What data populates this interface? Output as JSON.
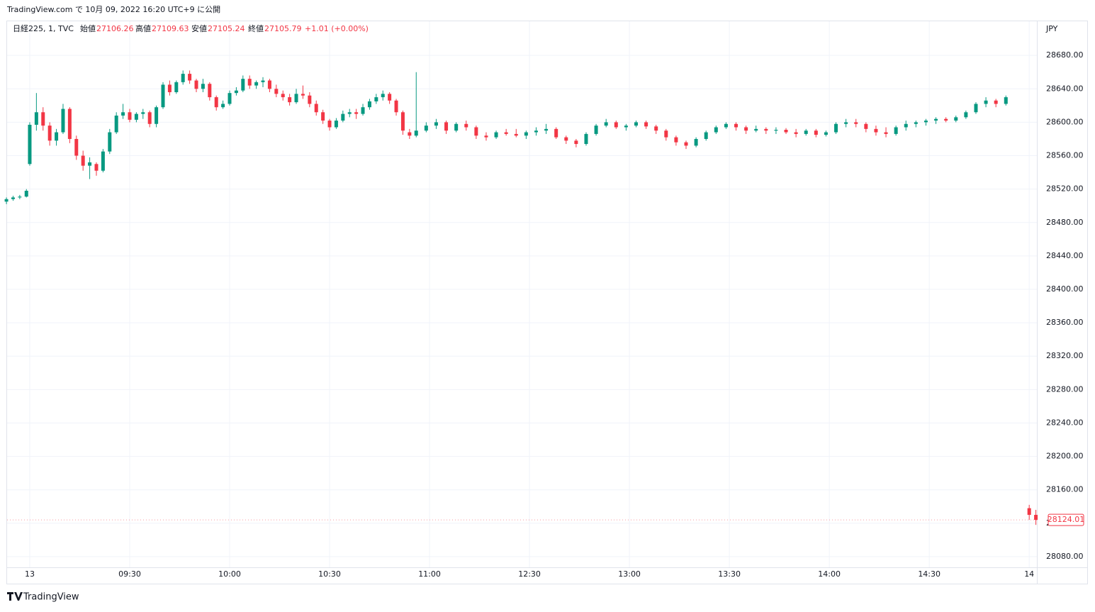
{
  "header": {
    "published": "TradingView.com で 10月 09, 2022 16:20 UTC+9 に公開"
  },
  "legend": {
    "symbol": "日経225, 1, TVC",
    "open_label": "始値",
    "open": "27106.26",
    "high_label": "高値",
    "high": "27109.63",
    "low_label": "安値",
    "low": "27105.24",
    "close_label": "終値",
    "close": "27105.79",
    "change": "+1.01 (+0.00%)"
  },
  "footer": {
    "logo": "TradingView"
  },
  "chart_data": {
    "type": "candlestick",
    "currency": "JPY",
    "up_color": "#089981",
    "down_color": "#f23645",
    "grid": true,
    "current_price": 28124.01,
    "xlim": [
      -6.8,
      302.3
    ],
    "ylim": [
      28067.2,
      28720.9
    ],
    "xticks": [
      {
        "value": 0,
        "label": "13"
      },
      {
        "value": 30,
        "label": "09:30"
      },
      {
        "value": 60,
        "label": "10:00"
      },
      {
        "value": 90,
        "label": "10:30"
      },
      {
        "value": 120,
        "label": "11:00"
      },
      {
        "value": 150,
        "label": "12:30"
      },
      {
        "value": 180,
        "label": "13:00"
      },
      {
        "value": 210,
        "label": "13:30"
      },
      {
        "value": 240,
        "label": "14:00"
      },
      {
        "value": 270,
        "label": "14:30"
      },
      {
        "value": 300,
        "label": "14"
      }
    ],
    "yticks": [
      {
        "value": 28080,
        "label": "28080.00"
      },
      {
        "value": 28120,
        "label": "28120.00"
      },
      {
        "value": 28160,
        "label": "28160.00"
      },
      {
        "value": 28200,
        "label": "28200.00"
      },
      {
        "value": 28240,
        "label": "28240.00"
      },
      {
        "value": 28280,
        "label": "28280.00"
      },
      {
        "value": 28320,
        "label": "28320.00"
      },
      {
        "value": 28360,
        "label": "28360.00"
      },
      {
        "value": 28400,
        "label": "28400.00"
      },
      {
        "value": 28440,
        "label": "28440.00"
      },
      {
        "value": 28480,
        "label": "28480.00"
      },
      {
        "value": 28520,
        "label": "28520.00"
      },
      {
        "value": 28560,
        "label": "28560.00"
      },
      {
        "value": 28600,
        "label": "28600.00"
      },
      {
        "value": 28640,
        "label": "28640.00"
      },
      {
        "value": 28680,
        "label": "28680.00"
      }
    ],
    "x": [
      -7,
      -5,
      -3,
      -1,
      0,
      2,
      4,
      6,
      8,
      10,
      12,
      14,
      16,
      18,
      20,
      22,
      24,
      26,
      28,
      30,
      32,
      34,
      36,
      38,
      40,
      42,
      44,
      46,
      48,
      50,
      52,
      54,
      56,
      58,
      60,
      62,
      64,
      66,
      68,
      70,
      72,
      74,
      76,
      78,
      80,
      82,
      84,
      86,
      88,
      90,
      92,
      94,
      96,
      98,
      100,
      102,
      104,
      106,
      108,
      110,
      112,
      114,
      116,
      119,
      122,
      125,
      128,
      131,
      134,
      137,
      140,
      143,
      146,
      149,
      152,
      155,
      158,
      161,
      164,
      167,
      170,
      173,
      176,
      179,
      182,
      185,
      188,
      191,
      194,
      197,
      200,
      203,
      206,
      209,
      212,
      215,
      218,
      221,
      224,
      227,
      230,
      233,
      236,
      239,
      242,
      245,
      248,
      251,
      254,
      257,
      260,
      263,
      266,
      269,
      272,
      275,
      278,
      281,
      284,
      287,
      290,
      293,
      300,
      302
    ],
    "ohlc": [
      [
        28505,
        28510,
        28502,
        28508
      ],
      [
        28508,
        28512,
        28506,
        28510
      ],
      [
        28510,
        28513,
        28508,
        28511
      ],
      [
        28511,
        28520,
        28510,
        28518
      ],
      [
        28550,
        28600,
        28548,
        28597
      ],
      [
        28597,
        28635,
        28590,
        28612
      ],
      [
        28612,
        28618,
        28590,
        28596
      ],
      [
        28596,
        28600,
        28572,
        28578
      ],
      [
        28578,
        28592,
        28572,
        28588
      ],
      [
        28588,
        28622,
        28586,
        28616
      ],
      [
        28616,
        28618,
        28575,
        28580
      ],
      [
        28580,
        28584,
        28555,
        28560
      ],
      [
        28560,
        28566,
        28542,
        28548
      ],
      [
        28548,
        28558,
        28532,
        28552
      ],
      [
        28550,
        28552,
        28536,
        28542
      ],
      [
        28542,
        28568,
        28540,
        28565
      ],
      [
        28565,
        28592,
        28562,
        28588
      ],
      [
        28588,
        28612,
        28586,
        28608
      ],
      [
        28608,
        28622,
        28604,
        28612
      ],
      [
        28612,
        28616,
        28600,
        28603
      ],
      [
        28603,
        28612,
        28600,
        28610
      ],
      [
        28610,
        28616,
        28604,
        28612
      ],
      [
        28612,
        28614,
        28594,
        28598
      ],
      [
        28598,
        28620,
        28594,
        28618
      ],
      [
        28618,
        28648,
        28616,
        28645
      ],
      [
        28645,
        28650,
        28632,
        28636
      ],
      [
        28636,
        28650,
        28634,
        28648
      ],
      [
        28648,
        28662,
        28645,
        28658
      ],
      [
        28658,
        28662,
        28646,
        28650
      ],
      [
        28650,
        28652,
        28636,
        28640
      ],
      [
        28640,
        28652,
        28636,
        28646
      ],
      [
        28646,
        28648,
        28626,
        28630
      ],
      [
        28630,
        28632,
        28614,
        28618
      ],
      [
        28618,
        28626,
        28616,
        28622
      ],
      [
        28622,
        28638,
        28620,
        28635
      ],
      [
        28635,
        28642,
        28632,
        28638
      ],
      [
        28638,
        28656,
        28636,
        28652
      ],
      [
        28652,
        28656,
        28640,
        28644
      ],
      [
        28644,
        28650,
        28640,
        28648
      ],
      [
        28648,
        28654,
        28642,
        28650
      ],
      [
        28650,
        28652,
        28636,
        28640
      ],
      [
        28640,
        28645,
        28630,
        28634
      ],
      [
        28634,
        28638,
        28626,
        28630
      ],
      [
        28630,
        28634,
        28620,
        28624
      ],
      [
        28624,
        28640,
        28622,
        28634
      ],
      [
        28634,
        28644,
        28628,
        28632
      ],
      [
        28632,
        28636,
        28618,
        28622
      ],
      [
        28622,
        28626,
        28608,
        28612
      ],
      [
        28612,
        28615,
        28598,
        28602
      ],
      [
        28602,
        28604,
        28590,
        28594
      ],
      [
        28594,
        28605,
        28592,
        28602
      ],
      [
        28602,
        28614,
        28600,
        28610
      ],
      [
        28610,
        28616,
        28606,
        28612
      ],
      [
        28612,
        28616,
        28604,
        28610
      ],
      [
        28610,
        28622,
        28608,
        28618
      ],
      [
        28618,
        28628,
        28615,
        28625
      ],
      [
        28625,
        28634,
        28622,
        28630
      ],
      [
        28630,
        28638,
        28626,
        28634
      ],
      [
        28634,
        28636,
        28622,
        28626
      ],
      [
        28626,
        28628,
        28608,
        28612
      ],
      [
        28612,
        28614,
        28585,
        28590
      ],
      [
        28588,
        28592,
        28580,
        28584
      ],
      [
        28584,
        28660,
        28582,
        28590
      ],
      [
        28590,
        28600,
        28588,
        28596
      ],
      [
        28596,
        28604,
        28592,
        28600
      ],
      [
        28600,
        28602,
        28586,
        28590
      ],
      [
        28590,
        28600,
        28588,
        28598
      ],
      [
        28598,
        28602,
        28590,
        28594
      ],
      [
        28594,
        28596,
        28580,
        28584
      ],
      [
        28584,
        28588,
        28578,
        28582
      ],
      [
        28582,
        28590,
        28580,
        28588
      ],
      [
        28588,
        28592,
        28584,
        28586
      ],
      [
        28586,
        28592,
        28582,
        28584
      ],
      [
        28584,
        28590,
        28580,
        28588
      ],
      [
        28588,
        28594,
        28584,
        28590
      ],
      [
        28590,
        28598,
        28586,
        28592
      ],
      [
        28592,
        28594,
        28580,
        28582
      ],
      [
        28582,
        28584,
        28574,
        28578
      ],
      [
        28578,
        28580,
        28570,
        28574
      ],
      [
        28574,
        28588,
        28572,
        28586
      ],
      [
        28586,
        28598,
        28584,
        28596
      ],
      [
        28596,
        28604,
        28594,
        28600
      ],
      [
        28600,
        28602,
        28592,
        28594
      ],
      [
        28594,
        28598,
        28590,
        28596
      ],
      [
        28596,
        28602,
        28594,
        28600
      ],
      [
        28600,
        28602,
        28592,
        28595
      ],
      [
        28595,
        28597,
        28586,
        28590
      ],
      [
        28590,
        28592,
        28578,
        28582
      ],
      [
        28582,
        28584,
        28572,
        28576
      ],
      [
        28576,
        28578,
        28568,
        28572
      ],
      [
        28572,
        28582,
        28570,
        28580
      ],
      [
        28580,
        28590,
        28578,
        28588
      ],
      [
        28588,
        28596,
        28586,
        28594
      ],
      [
        28594,
        28600,
        28592,
        28598
      ],
      [
        28598,
        28600,
        28590,
        28594
      ],
      [
        28594,
        28596,
        28586,
        28590
      ],
      [
        28590,
        28596,
        28588,
        28592
      ],
      [
        28592,
        28594,
        28586,
        28590
      ],
      [
        28590,
        28594,
        28586,
        28591
      ],
      [
        28591,
        28593,
        28586,
        28588
      ],
      [
        28588,
        28592,
        28582,
        28586
      ],
      [
        28586,
        28592,
        28584,
        28590
      ],
      [
        28590,
        28592,
        28582,
        28585
      ],
      [
        28585,
        28590,
        28583,
        28588
      ],
      [
        28588,
        28600,
        28586,
        28598
      ],
      [
        28598,
        28604,
        28594,
        28600
      ],
      [
        28600,
        28604,
        28594,
        28598
      ],
      [
        28598,
        28600,
        28588,
        28592
      ],
      [
        28592,
        28596,
        28584,
        28588
      ],
      [
        28588,
        28594,
        28582,
        28586
      ],
      [
        28586,
        28596,
        28584,
        28594
      ],
      [
        28594,
        28602,
        28590,
        28598
      ],
      [
        28598,
        28602,
        28594,
        28600
      ],
      [
        28600,
        28604,
        28596,
        28602
      ],
      [
        28602,
        28606,
        28598,
        28604
      ],
      [
        28604,
        28606,
        28600,
        28602
      ],
      [
        28602,
        28608,
        28600,
        28606
      ],
      [
        28606,
        28614,
        28604,
        28612
      ],
      [
        28612,
        28624,
        28610,
        28622
      ],
      [
        28622,
        28630,
        28618,
        28626
      ],
      [
        28626,
        28628,
        28618,
        28622
      ],
      [
        28622,
        28632,
        28620,
        28630
      ],
      [
        28138,
        28142,
        28124,
        28130
      ],
      [
        28130,
        28136,
        28118,
        28124
      ]
    ]
  }
}
